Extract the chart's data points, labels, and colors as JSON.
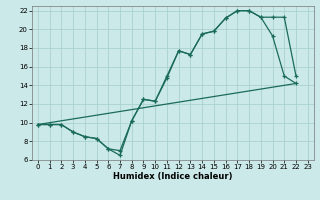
{
  "xlabel": "Humidex (Indice chaleur)",
  "bg_color": "#cce9e9",
  "grid_color": "#aad0d0",
  "line_color": "#1a6b5a",
  "xlim": [
    -0.5,
    23.5
  ],
  "ylim": [
    6,
    22.5
  ],
  "xticks": [
    0,
    1,
    2,
    3,
    4,
    5,
    6,
    7,
    8,
    9,
    10,
    11,
    12,
    13,
    14,
    15,
    16,
    17,
    18,
    19,
    20,
    21,
    22,
    23
  ],
  "yticks": [
    6,
    8,
    10,
    12,
    14,
    16,
    18,
    20,
    22
  ],
  "line1_x": [
    0,
    1,
    2,
    3,
    4,
    5,
    6,
    7,
    8,
    9,
    10,
    11,
    12,
    13,
    14,
    15,
    16,
    17,
    18,
    19,
    20,
    21,
    22
  ],
  "line1_y": [
    9.8,
    9.8,
    9.8,
    9.0,
    8.5,
    8.3,
    7.2,
    6.5,
    10.2,
    12.5,
    12.3,
    14.8,
    17.7,
    17.3,
    19.5,
    19.8,
    21.2,
    22.0,
    22.0,
    21.3,
    19.3,
    15.0,
    14.2
  ],
  "line2_x": [
    0,
    1,
    2,
    3,
    4,
    5,
    6,
    7,
    8,
    9,
    10,
    11,
    12,
    13,
    14,
    15,
    16,
    17,
    18,
    19,
    20,
    21,
    22
  ],
  "line2_y": [
    9.8,
    9.8,
    9.8,
    9.0,
    8.5,
    8.3,
    7.2,
    7.0,
    10.2,
    12.5,
    12.3,
    15.0,
    17.7,
    17.3,
    19.5,
    19.8,
    21.2,
    22.0,
    22.0,
    21.3,
    21.3,
    21.3,
    15.0
  ],
  "line3_x": [
    0,
    22
  ],
  "line3_y": [
    9.8,
    14.2
  ],
  "marker_size": 3.0,
  "line_width": 0.9
}
